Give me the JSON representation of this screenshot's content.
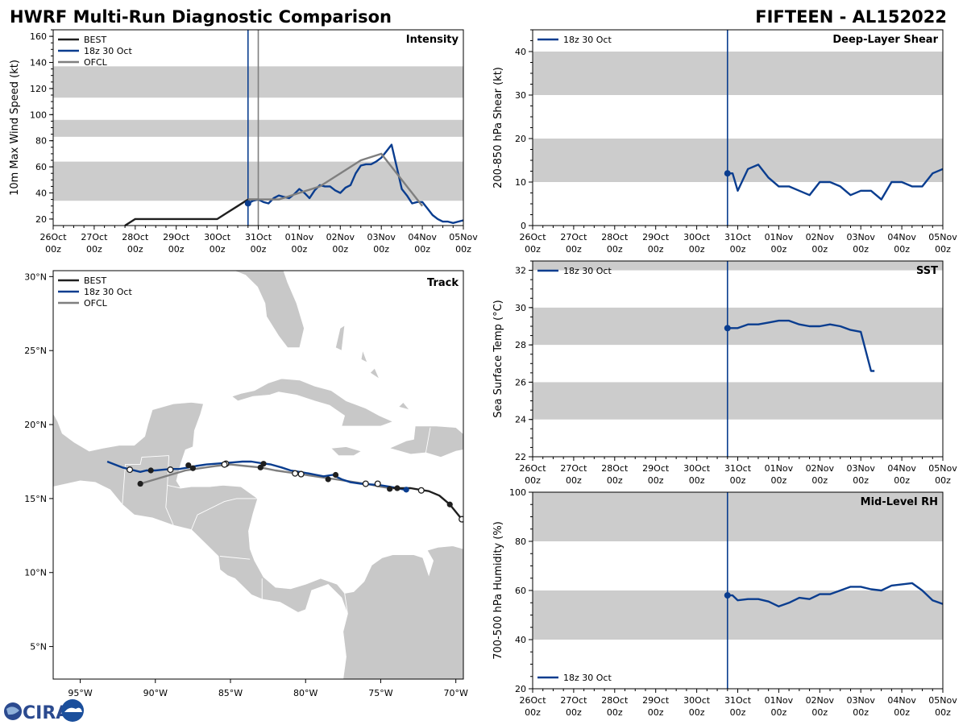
{
  "header": {
    "title": "HWRF Multi-Run Diagnostic Comparison",
    "storm": "FIFTEEN - AL152022"
  },
  "logo": {
    "text": "CIRA",
    "icon": "globe-icon"
  },
  "colors": {
    "best": "#1f1f1f",
    "run": "#0a3d8f",
    "ofcl": "#7f7f7f",
    "band": "#cccccc",
    "land": "#c8c8c8"
  },
  "time_axis": {
    "labels": [
      "26Oct\n00z",
      "27Oct\n00z",
      "28Oct\n00z",
      "29Oct\n00z",
      "30Oct\n00z",
      "31Oct\n00z",
      "01Nov\n00z",
      "02Nov\n00z",
      "03Nov\n00z",
      "04Nov\n00z",
      "05Nov\n00z"
    ],
    "init_time_h": 114
  },
  "chart_data": [
    {
      "id": "intensity",
      "type": "line",
      "title": "Intensity",
      "ylabel": "10m Max Wind Speed (kt)",
      "ylim": [
        15,
        165
      ],
      "yticks": [
        20,
        40,
        60,
        80,
        100,
        120,
        140,
        160
      ],
      "bands": [
        [
          34,
          64
        ],
        [
          83,
          96
        ],
        [
          113,
          137
        ]
      ],
      "vlines": [
        {
          "h": 114,
          "series": "18z 30 Oct"
        },
        {
          "h": 120,
          "series": "OFCL"
        }
      ],
      "legend": [
        "BEST",
        "18z 30 Oct",
        "OFCL"
      ],
      "series": [
        {
          "name": "BEST",
          "x": [
            42,
            48,
            54,
            60,
            66,
            72,
            78,
            84,
            90,
            96,
            102,
            108,
            114,
            120
          ],
          "y": [
            15,
            20,
            20,
            20,
            20,
            20,
            20,
            20,
            20,
            20,
            25,
            30,
            35,
            35
          ]
        },
        {
          "name": "18z 30 Oct",
          "x": [
            114,
            117,
            120,
            123,
            126,
            129,
            132,
            135,
            138,
            141,
            144,
            147,
            150,
            153,
            156,
            159,
            162,
            165,
            168,
            171,
            174,
            177,
            180,
            183,
            186,
            189,
            192,
            195,
            198,
            201,
            204,
            207,
            210,
            213,
            216,
            219,
            222,
            225,
            228,
            231,
            234,
            237,
            240
          ],
          "y": [
            32,
            34,
            35,
            33,
            32,
            36,
            38,
            37,
            36,
            39,
            43,
            40,
            36,
            42,
            46,
            45,
            45,
            42,
            40,
            44,
            46,
            55,
            61,
            62,
            62,
            64,
            67,
            72,
            77,
            60,
            43,
            38,
            32,
            33,
            33,
            28,
            23,
            20,
            18,
            18,
            17,
            18,
            19
          ]
        },
        {
          "name": "OFCL",
          "x": [
            114,
            120,
            132,
            144,
            156,
            168,
            180,
            192,
            204,
            216
          ],
          "y": [
            35,
            35,
            35,
            40,
            45,
            55,
            65,
            70,
            50,
            30
          ]
        }
      ]
    },
    {
      "id": "shear",
      "type": "line",
      "title": "Deep-Layer Shear",
      "ylabel": "200-850 hPa Shear (kt)",
      "ylim": [
        0,
        45
      ],
      "yticks": [
        0,
        10,
        20,
        30,
        40
      ],
      "bands": [
        [
          10,
          20
        ],
        [
          30,
          40
        ]
      ],
      "vlines": [
        {
          "h": 114,
          "series": "18z 30 Oct"
        }
      ],
      "legend": [
        "18z 30 Oct"
      ],
      "series": [
        {
          "name": "18z 30 Oct",
          "x": [
            114,
            117,
            120,
            126,
            132,
            138,
            144,
            150,
            156,
            162,
            168,
            174,
            180,
            186,
            192,
            198,
            204,
            210,
            216,
            222,
            228,
            234,
            240
          ],
          "y": [
            12,
            12,
            8,
            13,
            14,
            11,
            9,
            9,
            8,
            7,
            10,
            10,
            9,
            7,
            8,
            8,
            6,
            10,
            10,
            9,
            9,
            12,
            13
          ]
        }
      ]
    },
    {
      "id": "sst",
      "type": "line",
      "title": "SST",
      "ylabel": "Sea Surface Temp (°C)",
      "ylim": [
        22,
        32.5
      ],
      "yticks": [
        22,
        24,
        26,
        28,
        30,
        32
      ],
      "bands": [
        [
          24,
          26
        ],
        [
          28,
          30
        ],
        [
          32,
          32.5
        ]
      ],
      "vlines": [
        {
          "h": 114,
          "series": "18z 30 Oct"
        }
      ],
      "legend": [
        "18z 30 Oct"
      ],
      "series": [
        {
          "name": "18z 30 Oct",
          "x": [
            114,
            117,
            120,
            126,
            132,
            138,
            144,
            150,
            156,
            162,
            168,
            174,
            180,
            186,
            192,
            198,
            200
          ],
          "y": [
            28.9,
            28.9,
            28.9,
            29.1,
            29.1,
            29.2,
            29.3,
            29.3,
            29.1,
            29.0,
            29.0,
            29.1,
            29.0,
            28.8,
            28.7,
            26.6,
            26.6
          ]
        }
      ]
    },
    {
      "id": "rh",
      "type": "line",
      "title": "Mid-Level RH",
      "ylabel": "700-500 hPa Humidity (%)",
      "ylim": [
        20,
        100
      ],
      "yticks": [
        20,
        40,
        60,
        80,
        100
      ],
      "bands": [
        [
          40,
          60
        ],
        [
          80,
          100
        ]
      ],
      "vlines": [
        {
          "h": 114,
          "series": "18z 30 Oct"
        }
      ],
      "legend": [
        "18z 30 Oct"
      ],
      "series": [
        {
          "name": "18z 30 Oct",
          "x": [
            114,
            117,
            120,
            126,
            132,
            138,
            144,
            150,
            156,
            162,
            168,
            174,
            180,
            186,
            192,
            198,
            204,
            210,
            216,
            222,
            228,
            234,
            240
          ],
          "y": [
            58,
            58,
            56,
            56.5,
            56.5,
            55.5,
            53.5,
            55,
            57,
            56.5,
            58.5,
            58.5,
            60,
            61.5,
            61.5,
            60.5,
            60,
            62,
            62.5,
            63,
            60,
            56,
            54.5
          ]
        }
      ]
    },
    {
      "id": "track",
      "type": "scatter",
      "title": "Track",
      "xlim": [
        -96.8,
        -69.5
      ],
      "ylim": [
        2.8,
        30.4
      ],
      "xticks": [
        -95,
        -90,
        -85,
        -80,
        -75,
        -70
      ],
      "xticklabels": [
        "95°W",
        "90°W",
        "85°W",
        "80°W",
        "75°W",
        "70°W"
      ],
      "yticks": [
        5,
        10,
        15,
        20,
        25,
        30
      ],
      "yticklabels": [
        "5°N",
        "10°N",
        "15°N",
        "20°N",
        "25°N",
        "30°N"
      ],
      "legend": [
        "BEST",
        "18z 30 Oct",
        "OFCL"
      ],
      "series": [
        {
          "name": "BEST",
          "lon": [
            -69.6,
            -70.4,
            -71.1,
            -71.8,
            -72.4,
            -73.0,
            -73.6,
            -74.2
          ],
          "lat": [
            13.6,
            14.6,
            15.2,
            15.5,
            15.6,
            15.7,
            15.7,
            15.7
          ]
        },
        {
          "name": "18z 30 Oct",
          "lon": [
            -73.4,
            -73.9,
            -74.4,
            -75.0,
            -75.6,
            -76.3,
            -77.0,
            -77.6,
            -78.2,
            -78.8,
            -79.3,
            -79.8,
            -80.4,
            -81.0,
            -81.6,
            -82.3,
            -83.0,
            -83.6,
            -84.2,
            -84.8,
            -85.4,
            -86.0,
            -86.6,
            -87.3,
            -87.8,
            -88.4,
            -89.0,
            -89.5,
            -90.0,
            -90.6,
            -91.0,
            -91.6,
            -92.2,
            -92.7,
            -93.2
          ],
          "lat": [
            15.6,
            15.7,
            15.8,
            15.9,
            15.95,
            16.0,
            16.1,
            16.3,
            16.6,
            16.5,
            16.6,
            16.7,
            16.8,
            16.9,
            17.1,
            17.3,
            17.4,
            17.5,
            17.5,
            17.45,
            17.4,
            17.35,
            17.3,
            17.2,
            17.1,
            17.0,
            17.0,
            16.95,
            16.9,
            16.9,
            16.8,
            16.95,
            17.1,
            17.3,
            17.5
          ]
        },
        {
          "name": "OFCL",
          "lon": [
            -74.4,
            -75.0,
            -75.7,
            -76.4,
            -77.0,
            -78.0,
            -79.0,
            -80.0,
            -81.0,
            -82.0,
            -83.0,
            -84.0,
            -85.0,
            -86.0,
            -87.0,
            -88.0,
            -89.0,
            -90.0,
            -91.0
          ],
          "lat": [
            15.7,
            15.8,
            15.95,
            16.05,
            16.15,
            16.3,
            16.45,
            16.6,
            16.75,
            16.9,
            17.1,
            17.2,
            17.3,
            17.2,
            17.05,
            16.9,
            16.6,
            16.3,
            16.0
          ]
        }
      ],
      "markers": [
        {
          "series": "BEST",
          "style": "filled",
          "lon": -70.4,
          "lat": 14.6
        },
        {
          "series": "BEST",
          "style": "open",
          "lon": -69.6,
          "lat": 13.6
        },
        {
          "series": "BEST",
          "style": "open",
          "lon": -72.3,
          "lat": 15.55
        },
        {
          "series": "18z 30 Oct",
          "style": "filled",
          "lon": -73.3,
          "lat": 15.6
        },
        {
          "series": "BEST",
          "style": "filled",
          "lon": -73.9,
          "lat": 15.7
        },
        {
          "series": "BEST",
          "style": "filled",
          "lon": -74.4,
          "lat": 15.65
        },
        {
          "series": "BEST",
          "style": "open",
          "lon": -75.2,
          "lat": 16.0
        },
        {
          "series": "BEST",
          "style": "open",
          "lon": -76.0,
          "lat": 16.0
        },
        {
          "series": "BEST",
          "style": "filled",
          "lon": -78.0,
          "lat": 16.6
        },
        {
          "series": "BEST",
          "style": "filled",
          "lon": -78.5,
          "lat": 16.3
        },
        {
          "series": "BEST",
          "style": "open",
          "lon": -80.3,
          "lat": 16.65
        },
        {
          "series": "BEST",
          "style": "open",
          "lon": -80.7,
          "lat": 16.7
        },
        {
          "series": "BEST",
          "style": "filled",
          "lon": -82.8,
          "lat": 17.35
        },
        {
          "series": "BEST",
          "style": "filled",
          "lon": -83.0,
          "lat": 17.1
        },
        {
          "series": "BEST",
          "style": "open",
          "lon": -85.3,
          "lat": 17.35
        },
        {
          "series": "BEST",
          "style": "open",
          "lon": -85.4,
          "lat": 17.3
        },
        {
          "series": "BEST",
          "style": "filled",
          "lon": -87.5,
          "lat": 17.05
        },
        {
          "series": "BEST",
          "style": "filled",
          "lon": -87.8,
          "lat": 17.25
        },
        {
          "series": "BEST",
          "style": "open",
          "lon": -89.0,
          "lat": 16.95
        },
        {
          "series": "BEST",
          "style": "filled",
          "lon": -90.3,
          "lat": 16.9
        },
        {
          "series": "BEST",
          "style": "filled",
          "lon": -91.0,
          "lat": 16.0
        },
        {
          "series": "BEST",
          "style": "open",
          "lon": -91.7,
          "lat": 16.95
        }
      ]
    }
  ]
}
